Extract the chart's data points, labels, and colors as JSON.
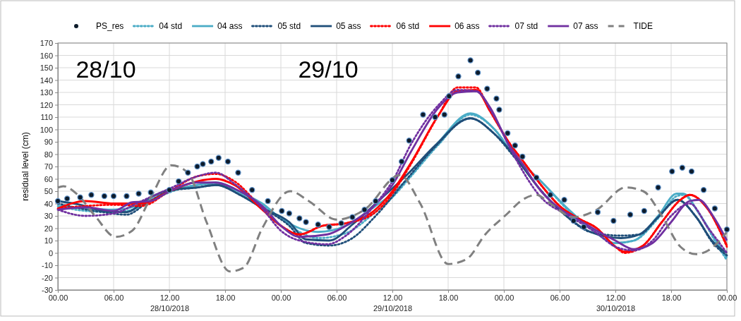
{
  "chart_data": {
    "type": "line",
    "ylabel": "residual level (cm)",
    "xlim": [
      "2018-10-28T00:00",
      "2018-10-31T00:00"
    ],
    "ylim": [
      -30,
      170
    ],
    "xticks": [
      {
        "value": "2018-10-28T00:00",
        "label": "00.00"
      },
      {
        "value": "2018-10-28T06:00",
        "label": "06.00"
      },
      {
        "value": "2018-10-28T12:00",
        "label": "12.00\n28/10/2018"
      },
      {
        "value": "2018-10-28T18:00",
        "label": "18.00"
      },
      {
        "value": "2018-10-29T00:00",
        "label": "00.00"
      },
      {
        "value": "2018-10-29T06:00",
        "label": "06.00"
      },
      {
        "value": "2018-10-29T12:00",
        "label": "12.00\n29/10/2018"
      },
      {
        "value": "2018-10-29T18:00",
        "label": "18.00"
      },
      {
        "value": "2018-10-30T00:00",
        "label": "00.00"
      },
      {
        "value": "2018-10-30T06:00",
        "label": "06.00"
      },
      {
        "value": "2018-10-30T12:00",
        "label": "12.00\n30/10/2018"
      },
      {
        "value": "2018-10-30T18:00",
        "label": "18.00"
      },
      {
        "value": "2018-10-31T00:00",
        "label": "00.00"
      }
    ],
    "yticks": [
      -30,
      -20,
      -10,
      0,
      10,
      20,
      30,
      40,
      50,
      60,
      70,
      80,
      90,
      100,
      110,
      120,
      130,
      140,
      150,
      160,
      170
    ],
    "grid": true,
    "legend": "top",
    "annotations": [
      "28/10",
      "29/10"
    ],
    "series": [
      {
        "name": "PS_res",
        "type": "scatter",
        "marker": "circle",
        "color": "#0d1b2a",
        "x": [
          "2018-10-28T00:00",
          "2018-10-28T01:00",
          "2018-10-28T02:24",
          "2018-10-28T03:36",
          "2018-10-28T05:00",
          "2018-10-28T06:00",
          "2018-10-28T07:24",
          "2018-10-28T08:42",
          "2018-10-28T10:00",
          "2018-10-28T12:00",
          "2018-10-28T13:00",
          "2018-10-28T14:00",
          "2018-10-28T15:00",
          "2018-10-28T15:36",
          "2018-10-28T16:30",
          "2018-10-28T17:18",
          "2018-10-28T18:18",
          "2018-10-28T19:24",
          "2018-10-28T20:54",
          "2018-10-28T22:36",
          "2018-10-29T00:06",
          "2018-10-29T00:54",
          "2018-10-29T02:00",
          "2018-10-29T02:42",
          "2018-10-29T04:00",
          "2018-10-29T05:12",
          "2018-10-29T06:30",
          "2018-10-29T07:42",
          "2018-10-29T09:00",
          "2018-10-29T10:12",
          "2018-10-29T12:00",
          "2018-10-29T13:00",
          "2018-10-29T13:48",
          "2018-10-29T15:18",
          "2018-10-29T16:36",
          "2018-10-29T17:36",
          "2018-10-29T18:06",
          "2018-10-29T19:06",
          "2018-10-29T20:24",
          "2018-10-29T21:12",
          "2018-10-29T22:12",
          "2018-10-29T23:12",
          "2018-10-29T23:30",
          "2018-10-30T00:24",
          "2018-10-30T01:12",
          "2018-10-30T02:00",
          "2018-10-30T03:30",
          "2018-10-30T05:00",
          "2018-10-30T06:30",
          "2018-10-30T07:30",
          "2018-10-30T08:36",
          "2018-10-30T10:06",
          "2018-10-30T11:48",
          "2018-10-30T13:36",
          "2018-10-30T15:06",
          "2018-10-30T16:36",
          "2018-10-30T18:06",
          "2018-10-30T19:12",
          "2018-10-30T20:12",
          "2018-10-30T21:30",
          "2018-10-30T22:42",
          "2018-10-31T00:00"
        ],
        "values": [
          42,
          44,
          45,
          47,
          46,
          46,
          46,
          48,
          49,
          51,
          58,
          65,
          70,
          72,
          74,
          77,
          74,
          65,
          51,
          42,
          34,
          32,
          28,
          25,
          23,
          21,
          24,
          29,
          35,
          42,
          59,
          74,
          91,
          112,
          110,
          112,
          127,
          143,
          156,
          146,
          133,
          125,
          116,
          97,
          87,
          78,
          61,
          47,
          43,
          26,
          21,
          33,
          26,
          31,
          34,
          53,
          66,
          69,
          66,
          51,
          36,
          19
        ]
      },
      {
        "name": "04 std",
        "line_style": "dotted",
        "color": "#4bacc6",
        "x": [
          "2018-10-28T00:00",
          "2018-10-28T03:00",
          "2018-10-28T06:00",
          "2018-10-28T08:00",
          "2018-10-28T10:00",
          "2018-10-28T12:00",
          "2018-10-28T15:00",
          "2018-10-28T17:00",
          "2018-10-28T20:00",
          "2018-10-28T22:00",
          "2018-10-29T00:00",
          "2018-10-29T02:00",
          "2018-10-29T04:00",
          "2018-10-29T07:00",
          "2018-10-29T10:00",
          "2018-10-29T12:00",
          "2018-10-29T14:00",
          "2018-10-29T17:00",
          "2018-10-29T20:24",
          "2018-10-29T23:00",
          "2018-10-30T01:00",
          "2018-10-30T04:00",
          "2018-10-30T07:00",
          "2018-10-30T09:18",
          "2018-10-30T12:00",
          "2018-10-30T14:00",
          "2018-10-30T16:36",
          "2018-10-30T18:36",
          "2018-10-30T19:18",
          "2018-10-30T21:00",
          "2018-10-30T23:00",
          "2018-10-31T00:00"
        ],
        "values": [
          38,
          34,
          33,
          35,
          42,
          49,
          55,
          56,
          47,
          38,
          28,
          17,
          12,
          16,
          32,
          45,
          62,
          88,
          112,
          100,
          80,
          58,
          34,
          20,
          8,
          10,
          28,
          46,
          47,
          32,
          6,
          -6
        ]
      },
      {
        "name": "04 ass",
        "line_style": "solid",
        "color": "#4bacc6",
        "x": [
          "2018-10-28T00:00",
          "2018-10-28T03:00",
          "2018-10-28T06:00",
          "2018-10-28T08:00",
          "2018-10-28T10:00",
          "2018-10-28T12:00",
          "2018-10-28T15:00",
          "2018-10-28T17:00",
          "2018-10-28T20:00",
          "2018-10-28T22:00",
          "2018-10-29T00:00",
          "2018-10-29T02:00",
          "2018-10-29T04:00",
          "2018-10-29T07:00",
          "2018-10-29T10:00",
          "2018-10-29T12:00",
          "2018-10-29T14:00",
          "2018-10-29T17:00",
          "2018-10-29T20:24",
          "2018-10-29T23:00",
          "2018-10-30T01:00",
          "2018-10-30T04:00",
          "2018-10-30T07:00",
          "2018-10-30T09:18",
          "2018-10-30T12:00",
          "2018-10-30T14:00",
          "2018-10-30T16:36",
          "2018-10-30T18:36",
          "2018-10-30T19:18",
          "2018-10-30T21:00",
          "2018-10-30T23:00",
          "2018-10-31T00:00"
        ],
        "values": [
          38,
          36,
          35,
          37,
          43,
          50,
          55,
          57,
          48,
          40,
          28,
          20,
          17,
          22,
          37,
          48,
          63,
          90,
          113,
          100,
          80,
          58,
          35,
          20,
          8,
          10,
          30,
          48,
          48,
          32,
          8,
          -4
        ]
      },
      {
        "name": "05 std",
        "line_style": "dotted",
        "color": "#1f4e79",
        "x": [
          "2018-10-28T00:00",
          "2018-10-28T02:24",
          "2018-10-28T04:54",
          "2018-10-28T07:24",
          "2018-10-28T09:30",
          "2018-10-28T12:00",
          "2018-10-28T15:00",
          "2018-10-28T17:06",
          "2018-10-28T19:36",
          "2018-10-28T22:06",
          "2018-10-29T00:54",
          "2018-10-29T02:42",
          "2018-10-29T05:12",
          "2018-10-29T07:42",
          "2018-10-29T10:12",
          "2018-10-29T13:48",
          "2018-10-29T16:36",
          "2018-10-29T20:24",
          "2018-10-29T22:54",
          "2018-10-30T01:12",
          "2018-10-30T02:00",
          "2018-10-30T03:30",
          "2018-10-30T06:42",
          "2018-10-30T09:18",
          "2018-10-30T12:36",
          "2018-10-30T14:36",
          "2018-10-30T16:36",
          "2018-10-30T18:42",
          "2018-10-30T20:42",
          "2018-10-30T22:30",
          "2018-10-31T00:00"
        ],
        "values": [
          40,
          36,
          33,
          31,
          40,
          50,
          53,
          55,
          47,
          36,
          22,
          8,
          6,
          12,
          30,
          62,
          86,
          109,
          97,
          77,
          70,
          55,
          30,
          17,
          14,
          15,
          29,
          43,
          29,
          8,
          -2
        ]
      },
      {
        "name": "05 ass",
        "line_style": "solid",
        "color": "#1f4e79",
        "x": [
          "2018-10-28T00:00",
          "2018-10-28T02:24",
          "2018-10-28T04:54",
          "2018-10-28T07:24",
          "2018-10-28T09:30",
          "2018-10-28T12:00",
          "2018-10-28T15:00",
          "2018-10-28T17:06",
          "2018-10-28T19:36",
          "2018-10-28T22:06",
          "2018-10-29T00:54",
          "2018-10-29T02:42",
          "2018-10-29T05:12",
          "2018-10-29T07:42",
          "2018-10-29T10:12",
          "2018-10-29T13:48",
          "2018-10-29T16:36",
          "2018-10-29T20:24",
          "2018-10-29T22:54",
          "2018-10-30T01:12",
          "2018-10-30T02:00",
          "2018-10-30T03:30",
          "2018-10-30T06:42",
          "2018-10-30T09:18",
          "2018-10-30T12:36",
          "2018-10-30T14:36",
          "2018-10-30T16:36",
          "2018-10-30T18:42",
          "2018-10-30T20:42",
          "2018-10-30T22:30",
          "2018-10-31T00:00"
        ],
        "values": [
          42,
          39,
          34,
          33,
          43,
          51,
          53,
          55,
          47,
          36,
          25,
          11,
          10,
          23,
          40,
          65,
          87,
          109,
          97,
          78,
          70,
          55,
          30,
          17,
          12,
          15,
          29,
          43,
          29,
          9,
          0
        ]
      },
      {
        "name": "06 std",
        "line_style": "dotted",
        "color": "#ff0000",
        "x": [
          "2018-10-28T00:00",
          "2018-10-28T03:00",
          "2018-10-28T06:00",
          "2018-10-28T09:00",
          "2018-10-28T12:00",
          "2018-10-28T15:00",
          "2018-10-28T17:00",
          "2018-10-28T19:00",
          "2018-10-28T22:00",
          "2018-10-29T00:00",
          "2018-10-29T02:00",
          "2018-10-29T04:30",
          "2018-10-29T07:00",
          "2018-10-29T10:00",
          "2018-10-29T12:00",
          "2018-10-29T14:00",
          "2018-10-29T17:00",
          "2018-10-29T19:00",
          "2018-10-29T21:00",
          "2018-10-29T22:30",
          "2018-10-30T00:30",
          "2018-10-30T02:00",
          "2018-10-30T04:00",
          "2018-10-30T06:00",
          "2018-10-30T08:00",
          "2018-10-30T10:00",
          "2018-10-30T12:00",
          "2018-10-30T13:00",
          "2018-10-30T15:00",
          "2018-10-30T17:00",
          "2018-10-30T19:00",
          "2018-10-30T20:00",
          "2018-10-30T22:00",
          "2018-10-31T00:00"
        ],
        "values": [
          36,
          38,
          39,
          38,
          50,
          62,
          64,
          58,
          36,
          22,
          15,
          22,
          24,
          32,
          48,
          72,
          112,
          134,
          134,
          115,
          90,
          75,
          55,
          38,
          28,
          20,
          5,
          0,
          6,
          25,
          43,
          47,
          35,
          5
        ]
      },
      {
        "name": "06 ass",
        "line_style": "solid",
        "color": "#ff0000",
        "x": [
          "2018-10-28T00:00",
          "2018-10-28T03:00",
          "2018-10-28T06:00",
          "2018-10-28T09:00",
          "2018-10-28T12:00",
          "2018-10-28T15:00",
          "2018-10-28T17:00",
          "2018-10-28T19:00",
          "2018-10-28T22:00",
          "2018-10-29T00:00",
          "2018-10-29T02:00",
          "2018-10-29T04:30",
          "2018-10-29T07:00",
          "2018-10-29T10:00",
          "2018-10-29T12:00",
          "2018-10-29T14:00",
          "2018-10-29T17:00",
          "2018-10-29T19:00",
          "2018-10-29T21:00",
          "2018-10-29T22:30",
          "2018-10-30T00:30",
          "2018-10-30T02:00",
          "2018-10-30T04:00",
          "2018-10-30T06:00",
          "2018-10-30T08:00",
          "2018-10-30T10:00",
          "2018-10-30T12:00",
          "2018-10-30T13:00",
          "2018-10-30T15:00",
          "2018-10-30T17:00",
          "2018-10-30T19:00",
          "2018-10-30T20:00",
          "2018-10-30T22:00",
          "2018-10-31T00:00"
        ],
        "values": [
          36,
          42,
          40,
          40,
          50,
          58,
          60,
          55,
          35,
          22,
          15,
          22,
          24,
          34,
          50,
          73,
          112,
          131,
          132,
          115,
          90,
          75,
          55,
          38,
          28,
          20,
          5,
          1,
          6,
          25,
          43,
          47,
          35,
          6
        ]
      },
      {
        "name": "07 std",
        "line_style": "dotted",
        "color": "#7030a0",
        "x": [
          "2018-10-28T00:00",
          "2018-10-28T03:00",
          "2018-10-28T06:00",
          "2018-10-28T09:00",
          "2018-10-28T12:00",
          "2018-10-28T15:00",
          "2018-10-28T17:00",
          "2018-10-28T19:00",
          "2018-10-28T22:00",
          "2018-10-29T00:00",
          "2018-10-29T02:00",
          "2018-10-29T05:00",
          "2018-10-29T07:00",
          "2018-10-29T10:00",
          "2018-10-29T12:00",
          "2018-10-29T14:00",
          "2018-10-29T17:00",
          "2018-10-29T19:00",
          "2018-10-29T21:00",
          "2018-10-29T23:00",
          "2018-10-30T01:00",
          "2018-10-30T04:00",
          "2018-10-30T07:00",
          "2018-10-30T10:00",
          "2018-10-30T12:00",
          "2018-10-30T14:00",
          "2018-10-30T16:00",
          "2018-10-30T18:00",
          "2018-10-30T20:00",
          "2018-10-30T22:00",
          "2018-10-31T00:00"
        ],
        "values": [
          35,
          30,
          32,
          42,
          52,
          62,
          65,
          56,
          36,
          18,
          10,
          7,
          14,
          38,
          58,
          88,
          120,
          132,
          131,
          110,
          80,
          45,
          30,
          16,
          5,
          2,
          10,
          30,
          40,
          20,
          0
        ]
      },
      {
        "name": "07 ass",
        "line_style": "solid",
        "color": "#7030a0",
        "x": [
          "2018-10-28T00:00",
          "2018-10-28T03:00",
          "2018-10-28T06:00",
          "2018-10-28T08:00",
          "2018-10-28T10:00",
          "2018-10-28T12:00",
          "2018-10-28T15:00",
          "2018-10-28T17:00",
          "2018-10-28T19:00",
          "2018-10-28T22:00",
          "2018-10-29T00:00",
          "2018-10-29T02:00",
          "2018-10-29T05:00",
          "2018-10-29T07:00",
          "2018-10-29T10:00",
          "2018-10-29T12:00",
          "2018-10-29T14:00",
          "2018-10-29T17:00",
          "2018-10-29T19:00",
          "2018-10-29T21:00",
          "2018-10-29T22:30",
          "2018-10-30T00:30",
          "2018-10-30T02:00",
          "2018-10-30T04:00",
          "2018-10-30T06:00",
          "2018-10-30T08:00",
          "2018-10-30T10:00",
          "2018-10-30T12:00",
          "2018-10-30T14:00",
          "2018-10-30T16:00",
          "2018-10-30T18:00",
          "2018-10-30T20:00",
          "2018-10-30T21:00",
          "2018-10-30T22:30",
          "2018-10-31T00:00"
        ],
        "values": [
          35,
          37,
          34,
          41,
          42,
          50,
          57,
          57,
          52,
          38,
          22,
          13,
          15,
          22,
          38,
          55,
          82,
          118,
          130,
          131,
          118,
          88,
          72,
          50,
          36,
          27,
          18,
          10,
          3,
          8,
          25,
          42,
          43,
          30,
          10
        ]
      },
      {
        "name": "TIDE",
        "line_style": "dashed",
        "color": "#808080",
        "x": [
          "2018-10-28T00:00",
          "2018-10-28T00:36",
          "2018-10-28T02:00",
          "2018-10-28T04:00",
          "2018-10-28T06:12",
          "2018-10-28T08:00",
          "2018-10-28T10:00",
          "2018-10-28T12:12",
          "2018-10-28T14:00",
          "2018-10-28T16:00",
          "2018-10-28T18:30",
          "2018-10-28T20:00",
          "2018-10-28T22:00",
          "2018-10-29T01:00",
          "2018-10-29T03:00",
          "2018-10-29T06:00",
          "2018-10-29T09:00",
          "2018-10-29T12:48",
          "2018-10-29T15:00",
          "2018-10-29T18:00",
          "2018-10-29T20:00",
          "2018-10-29T22:00",
          "2018-10-30T00:24",
          "2018-10-30T02:00",
          "2018-10-30T03:30",
          "2018-10-30T05:00",
          "2018-10-30T07:30",
          "2018-10-30T10:00",
          "2018-10-30T13:06",
          "2018-10-30T15:00",
          "2018-10-30T17:00",
          "2018-10-30T19:00",
          "2018-10-30T20:42",
          "2018-10-30T22:00",
          "2018-10-31T00:00"
        ],
        "values": [
          53,
          54,
          48,
          30,
          13,
          18,
          45,
          71,
          65,
          25,
          -15,
          -12,
          20,
          50,
          42,
          27,
          35,
          63,
          40,
          -9,
          -5,
          15,
          32,
          43,
          47,
          40,
          29,
          35,
          53,
          50,
          30,
          5,
          -1,
          2,
          17
        ]
      }
    ]
  }
}
